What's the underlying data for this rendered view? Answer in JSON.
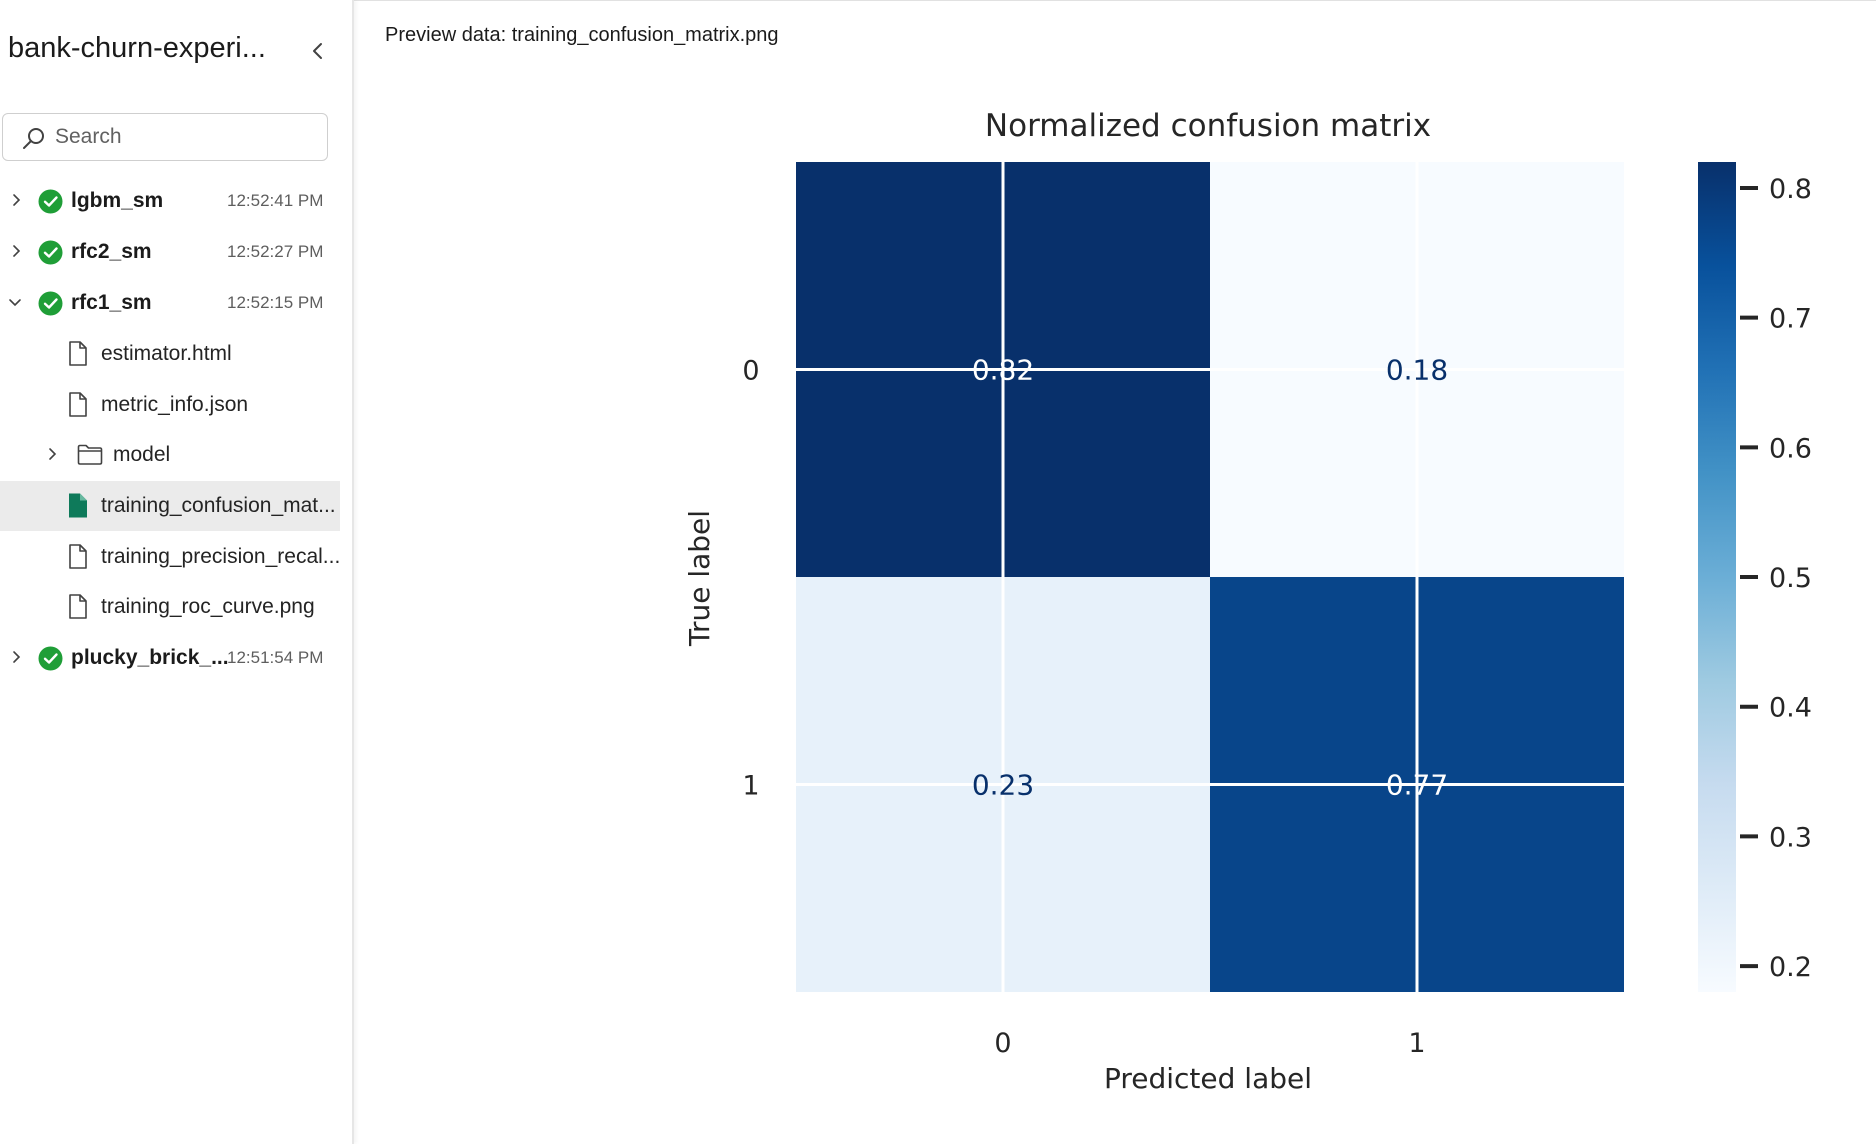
{
  "sidebar": {
    "title": "bank-churn-experi...",
    "search": {
      "placeholder": "Search",
      "value": ""
    },
    "runs": [
      {
        "name": "lgbm_sm",
        "time": "12:52:41 PM",
        "expanded": false,
        "status": "succeeded"
      },
      {
        "name": "rfc2_sm",
        "time": "12:52:27 PM",
        "expanded": false,
        "status": "succeeded"
      },
      {
        "name": "rfc1_sm",
        "time": "12:52:15 PM",
        "expanded": true,
        "status": "succeeded"
      },
      {
        "name": "plucky_brick_...",
        "time": "12:51:54 PM",
        "expanded": false,
        "status": "succeeded"
      }
    ],
    "rfc1_children": [
      {
        "name": "estimator.html",
        "type": "file"
      },
      {
        "name": "metric_info.json",
        "type": "file"
      },
      {
        "name": "model",
        "type": "folder"
      },
      {
        "name": "training_confusion_mat...",
        "type": "file",
        "selected": true
      },
      {
        "name": "training_precision_recal...",
        "type": "file"
      },
      {
        "name": "training_roc_curve.png",
        "type": "file"
      }
    ]
  },
  "main": {
    "preview_label": "Preview data: training_confusion_matrix.png"
  },
  "colors": {
    "success": "#1f9e37",
    "selected_file": "#0e7a5a",
    "cmap_low": "#f7fbff",
    "cmap_high": "#08306b"
  },
  "chart_data": {
    "type": "heatmap",
    "title": "Normalized confusion matrix",
    "xlabel": "Predicted label",
    "ylabel": "True label",
    "x_categories": [
      "0",
      "1"
    ],
    "y_categories": [
      "0",
      "1"
    ],
    "values": [
      [
        0.82,
        0.18
      ],
      [
        0.23,
        0.77
      ]
    ],
    "cell_labels": [
      [
        "0.82",
        "0.18"
      ],
      [
        "0.23",
        "0.77"
      ]
    ],
    "colorbar": {
      "range": [
        0.18,
        0.82
      ],
      "ticks": [
        0.2,
        0.3,
        0.4,
        0.5,
        0.6,
        0.7,
        0.8
      ],
      "tick_labels": [
        "0.2",
        "0.3",
        "0.4",
        "0.5",
        "0.6",
        "0.7",
        "0.8"
      ]
    },
    "colormap": "Blues",
    "grid": true
  }
}
